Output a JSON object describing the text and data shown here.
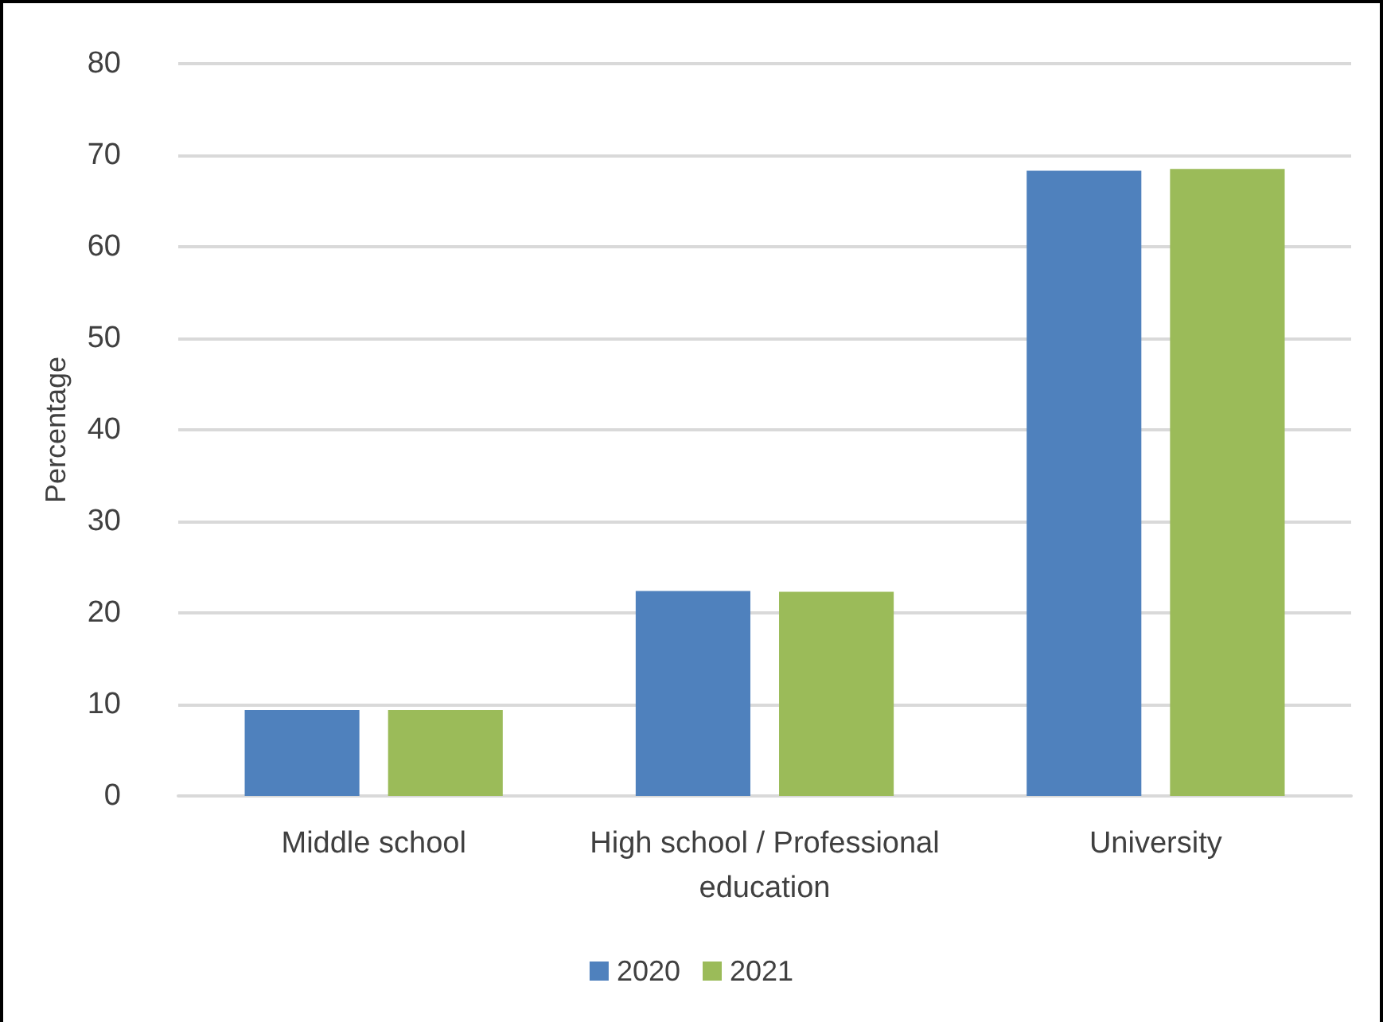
{
  "chart_data": {
    "type": "bar",
    "ylabel": "Percentage",
    "categories": [
      "Middle school",
      "High school / Professional\neducation",
      "University"
    ],
    "series": [
      {
        "name": "2020",
        "color": "#4f81bd",
        "values": [
          9.4,
          22.4,
          68.3
        ]
      },
      {
        "name": "2021",
        "color": "#9bbb59",
        "values": [
          9.4,
          22.3,
          68.5
        ]
      }
    ],
    "ylim": [
      0,
      80
    ],
    "yticks": [
      0,
      10,
      20,
      30,
      40,
      50,
      60,
      70,
      80
    ],
    "grid": "y",
    "legend": "bottom"
  }
}
